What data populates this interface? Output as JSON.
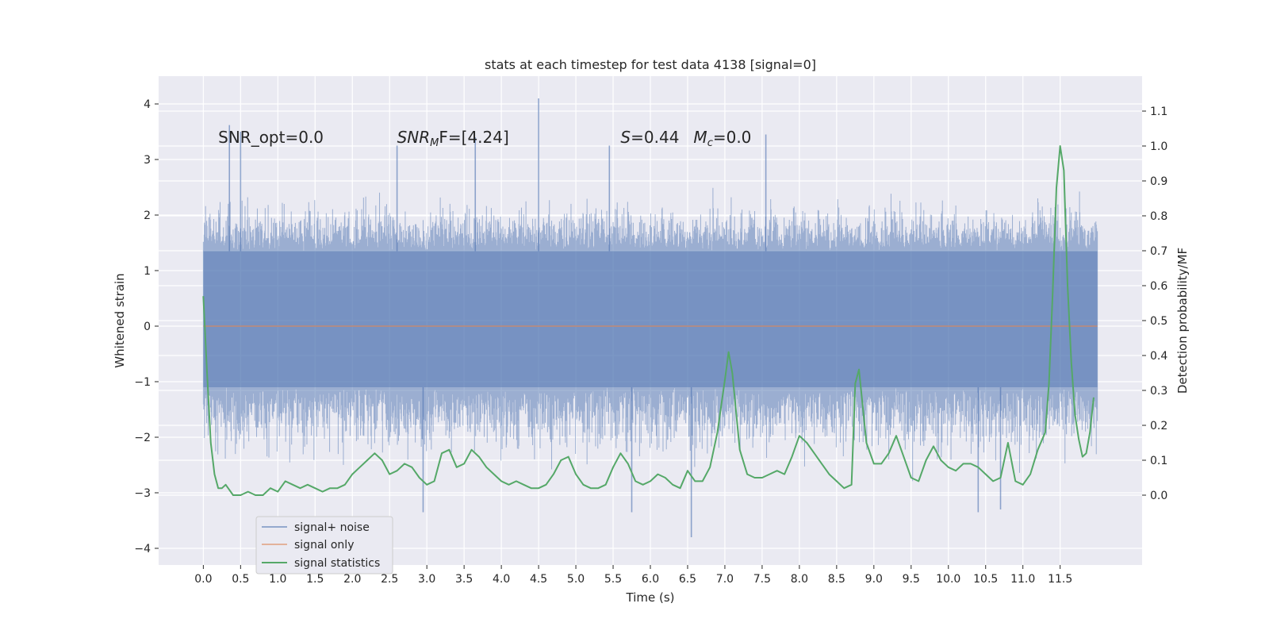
{
  "chart_data": {
    "type": "line",
    "title": "stats at each timestep for test data 4138 [signal=0]",
    "xlabel": "Time (s)",
    "ylabel": "Whitened strain",
    "ylabel_right": "Detection probability/MF",
    "xlim": [
      -0.6,
      12.6
    ],
    "ylim": [
      -4.3,
      4.5
    ],
    "ylim_right": [
      -0.2,
      1.2
    ],
    "x_ticks": [
      0.0,
      0.5,
      1.0,
      1.5,
      2.0,
      2.5,
      3.0,
      3.5,
      4.0,
      4.5,
      5.0,
      5.5,
      6.0,
      6.5,
      7.0,
      7.5,
      8.0,
      8.5,
      9.0,
      9.5,
      10.0,
      10.5,
      11.0,
      11.5
    ],
    "x_tick_labels": [
      "0.0",
      "0.5",
      "1.0",
      "1.5",
      "2.0",
      "2.5",
      "3.0",
      "3.5",
      "4.0",
      "4.5",
      "5.0",
      "5.5",
      "6.0",
      "6.5",
      "7.0",
      "7.5",
      "8.0",
      "8.5",
      "9.0",
      "9.5",
      "10.0",
      "10.5",
      "11.0",
      "11.5"
    ],
    "y_ticks": [
      -4,
      -3,
      -2,
      -1,
      0,
      1,
      2,
      3,
      4
    ],
    "y_tick_labels": [
      "−4",
      "−3",
      "−2",
      "−1",
      "0",
      "1",
      "2",
      "3",
      "4"
    ],
    "y_right_ticks": [
      0.0,
      0.1,
      0.2,
      0.3,
      0.4,
      0.5,
      0.6,
      0.7,
      0.8,
      0.9,
      1.0,
      1.1
    ],
    "y_right_tick_labels": [
      "0.0",
      "0.1",
      "0.2",
      "0.3",
      "0.4",
      "0.5",
      "0.6",
      "0.7",
      "0.8",
      "0.9",
      "1.0",
      "1.1"
    ],
    "grid": true,
    "legend": {
      "placement": "lower-left"
    },
    "annotations": [
      {
        "text": "SNR_opt=0.0",
        "x": 0.2,
        "y": 3.3
      },
      {
        "text": "SNR_MF=[4.24]",
        "x": 2.6,
        "y": 3.3,
        "main": "SNR",
        "sub": "M",
        "rest": "F=[4.24]"
      },
      {
        "text": "S=0.44   M_c=0.0",
        "x": 5.6,
        "y": 3.3,
        "s": "S",
        "s_rest": "=0.44",
        "m": "M",
        "m_sub": "c",
        "m_rest": "=0.0"
      }
    ],
    "noise": {
      "name": "signal+ noise",
      "color": "#4c72b0",
      "x_range": [
        0.0,
        12.0
      ],
      "core_band": [
        -1.1,
        1.35
      ],
      "typical_envelope": [
        -2.0,
        2.0
      ],
      "peaks": [
        {
          "x": 4.5,
          "y": 4.1
        },
        {
          "x": 0.35,
          "y": 3.62
        },
        {
          "x": 0.5,
          "y": 3.5
        },
        {
          "x": 2.6,
          "y": 3.25
        },
        {
          "x": 3.65,
          "y": 3.4
        },
        {
          "x": 5.45,
          "y": 3.25
        },
        {
          "x": 7.55,
          "y": 3.45
        },
        {
          "x": 6.55,
          "y": -3.8
        },
        {
          "x": 2.95,
          "y": -3.35
        },
        {
          "x": 10.7,
          "y": -3.3
        },
        {
          "x": 5.75,
          "y": -3.35
        },
        {
          "x": 10.4,
          "y": -3.35
        }
      ]
    },
    "signal_only": {
      "name": "signal only",
      "color": "#dd8452",
      "x": [
        0.0,
        12.0
      ],
      "y": [
        0.0,
        0.0
      ]
    },
    "stats": {
      "name": "signal statistics",
      "color": "#55a868",
      "axis": "right",
      "x": [
        0.0,
        0.05,
        0.1,
        0.15,
        0.2,
        0.25,
        0.3,
        0.4,
        0.5,
        0.6,
        0.7,
        0.8,
        0.9,
        1.0,
        1.1,
        1.2,
        1.3,
        1.4,
        1.5,
        1.6,
        1.7,
        1.8,
        1.9,
        2.0,
        2.1,
        2.2,
        2.3,
        2.4,
        2.5,
        2.6,
        2.7,
        2.8,
        2.9,
        3.0,
        3.1,
        3.2,
        3.3,
        3.4,
        3.5,
        3.6,
        3.7,
        3.8,
        3.9,
        4.0,
        4.1,
        4.2,
        4.3,
        4.4,
        4.5,
        4.6,
        4.7,
        4.8,
        4.9,
        5.0,
        5.1,
        5.2,
        5.3,
        5.4,
        5.5,
        5.6,
        5.7,
        5.8,
        5.9,
        6.0,
        6.1,
        6.2,
        6.3,
        6.4,
        6.5,
        6.6,
        6.7,
        6.8,
        6.9,
        7.0,
        7.05,
        7.1,
        7.2,
        7.3,
        7.4,
        7.5,
        7.6,
        7.7,
        7.8,
        7.9,
        8.0,
        8.1,
        8.2,
        8.3,
        8.4,
        8.5,
        8.6,
        8.7,
        8.75,
        8.8,
        8.9,
        9.0,
        9.1,
        9.2,
        9.3,
        9.4,
        9.5,
        9.6,
        9.7,
        9.8,
        9.9,
        10.0,
        10.1,
        10.2,
        10.3,
        10.4,
        10.5,
        10.6,
        10.7,
        10.8,
        10.9,
        11.0,
        11.1,
        11.2,
        11.3,
        11.35,
        11.4,
        11.45,
        11.5,
        11.55,
        11.6,
        11.65,
        11.7,
        11.75,
        11.8,
        11.85,
        11.9,
        11.95
      ],
      "y": [
        0.57,
        0.35,
        0.15,
        0.06,
        0.02,
        0.02,
        0.03,
        0.0,
        0.0,
        0.01,
        0.0,
        0.0,
        0.02,
        0.01,
        0.04,
        0.03,
        0.02,
        0.03,
        0.02,
        0.01,
        0.02,
        0.02,
        0.03,
        0.06,
        0.08,
        0.1,
        0.12,
        0.1,
        0.06,
        0.07,
        0.09,
        0.08,
        0.05,
        0.03,
        0.04,
        0.12,
        0.13,
        0.08,
        0.09,
        0.13,
        0.11,
        0.08,
        0.06,
        0.04,
        0.03,
        0.04,
        0.03,
        0.02,
        0.02,
        0.03,
        0.06,
        0.1,
        0.11,
        0.06,
        0.03,
        0.02,
        0.02,
        0.03,
        0.08,
        0.12,
        0.09,
        0.04,
        0.03,
        0.04,
        0.06,
        0.05,
        0.03,
        0.02,
        0.07,
        0.04,
        0.04,
        0.08,
        0.18,
        0.33,
        0.41,
        0.35,
        0.13,
        0.06,
        0.05,
        0.05,
        0.06,
        0.07,
        0.06,
        0.11,
        0.17,
        0.15,
        0.12,
        0.09,
        0.06,
        0.04,
        0.02,
        0.03,
        0.32,
        0.36,
        0.15,
        0.09,
        0.09,
        0.12,
        0.17,
        0.11,
        0.05,
        0.04,
        0.1,
        0.14,
        0.1,
        0.08,
        0.07,
        0.09,
        0.09,
        0.08,
        0.06,
        0.04,
        0.05,
        0.15,
        0.04,
        0.03,
        0.06,
        0.13,
        0.18,
        0.32,
        0.58,
        0.88,
        1.0,
        0.93,
        0.6,
        0.38,
        0.23,
        0.16,
        0.11,
        0.12,
        0.18,
        0.28
      ]
    }
  }
}
